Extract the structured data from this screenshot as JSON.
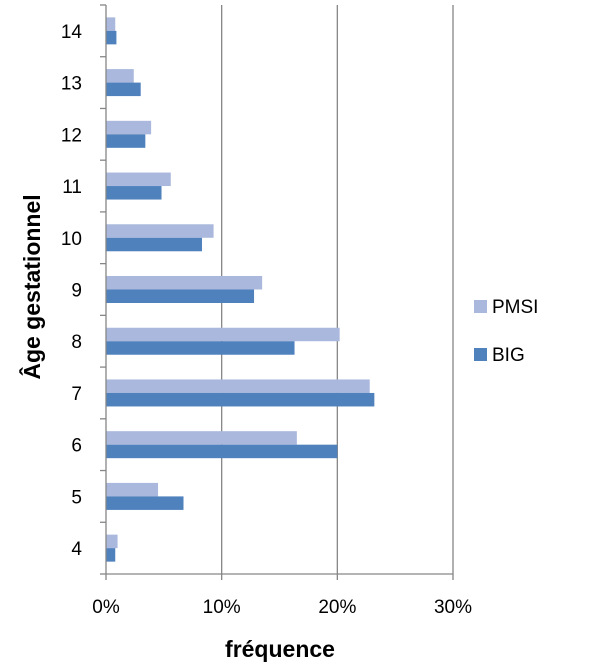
{
  "chart_data": {
    "type": "bar",
    "orientation": "horizontal",
    "title": "",
    "xlabel": "fréquence",
    "ylabel": "Âge gestationnel",
    "categories": [
      "4",
      "5",
      "6",
      "7",
      "8",
      "9",
      "10",
      "11",
      "12",
      "13",
      "14"
    ],
    "series": [
      {
        "name": "PMSI",
        "color": "#a9b8dc",
        "values": [
          1.0,
          4.5,
          16.5,
          22.8,
          20.2,
          13.5,
          9.3,
          5.6,
          3.9,
          2.4,
          0.8
        ]
      },
      {
        "name": "BIG",
        "color": "#4f81bd",
        "values": [
          0.8,
          6.7,
          20.0,
          23.2,
          16.3,
          12.8,
          8.3,
          4.8,
          3.4,
          3.0,
          0.9
        ]
      }
    ],
    "xlim": [
      0,
      30
    ],
    "xticks": [
      0,
      10,
      20,
      30
    ],
    "xtick_labels": [
      "0%",
      "10%",
      "20%",
      "30%"
    ],
    "grid": "vertical",
    "legend_position": "right"
  }
}
